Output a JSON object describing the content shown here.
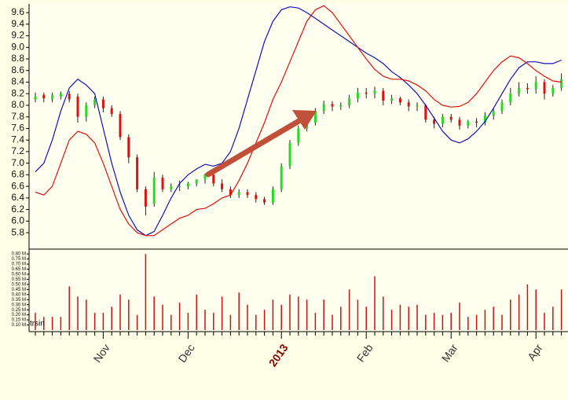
{
  "chart_data": {
    "type": "ohlc",
    "watermark": "trsin",
    "categories": [
      null,
      null,
      null,
      null,
      null,
      null,
      null,
      null,
      "Nov",
      null,
      null,
      null,
      null,
      null,
      null,
      null,
      null,
      null,
      "Dec",
      null,
      null,
      null,
      null,
      null,
      null,
      null,
      null,
      null,
      null,
      "2013",
      null,
      null,
      null,
      null,
      null,
      null,
      null,
      null,
      null,
      "Feb",
      null,
      null,
      null,
      null,
      null,
      null,
      null,
      null,
      null,
      "Mar",
      null,
      null,
      null,
      null,
      null,
      null,
      null,
      null,
      null,
      "Apr",
      null,
      null,
      null
    ],
    "open": [
      8.1,
      8.18,
      8.1,
      8.15,
      8.2,
      8.15,
      7.8,
      8.0,
      8.1,
      7.95,
      7.85,
      7.45,
      7.1,
      6.55,
      6.3,
      6.75,
      6.55,
      6.6,
      6.6,
      6.65,
      6.72,
      6.8,
      6.65,
      6.55,
      6.45,
      6.5,
      6.45,
      6.38,
      6.32,
      6.55,
      6.95,
      7.35,
      7.6,
      7.7,
      7.9,
      8.02,
      7.98,
      8.0,
      8.12,
      8.22,
      8.2,
      8.25,
      8.08,
      8.12,
      8.05,
      7.98,
      8.0,
      7.75,
      7.68,
      7.8,
      7.75,
      7.65,
      7.72,
      7.7,
      7.82,
      7.9,
      8.05,
      8.2,
      8.3,
      8.28,
      8.4,
      8.2,
      8.3
    ],
    "high": [
      8.22,
      8.22,
      8.22,
      8.24,
      8.25,
      8.2,
      8.05,
      8.15,
      8.15,
      8.0,
      7.9,
      7.5,
      7.15,
      6.6,
      6.85,
      6.8,
      6.65,
      6.7,
      6.68,
      6.72,
      6.82,
      6.85,
      6.72,
      6.6,
      6.55,
      6.55,
      6.5,
      6.42,
      6.6,
      7.0,
      7.4,
      7.65,
      7.78,
      7.95,
      8.08,
      8.07,
      8.05,
      8.18,
      8.3,
      8.3,
      8.32,
      8.3,
      8.18,
      8.15,
      8.1,
      8.05,
      8.02,
      7.8,
      7.85,
      7.85,
      7.8,
      7.75,
      7.78,
      7.88,
      7.95,
      8.1,
      8.3,
      8.4,
      8.38,
      8.5,
      8.45,
      8.35,
      8.55
    ],
    "low": [
      8.05,
      8.05,
      8.05,
      8.1,
      8.05,
      7.7,
      7.72,
      7.95,
      7.88,
      7.8,
      7.4,
      7.0,
      6.5,
      6.1,
      6.25,
      6.5,
      6.5,
      6.52,
      6.55,
      6.6,
      6.65,
      6.6,
      6.5,
      6.4,
      6.4,
      6.4,
      6.32,
      6.28,
      6.28,
      6.5,
      6.9,
      7.3,
      7.55,
      7.65,
      7.85,
      7.9,
      7.92,
      7.95,
      8.05,
      8.12,
      8.12,
      8.0,
      8.02,
      8.0,
      7.9,
      7.9,
      7.7,
      7.6,
      7.62,
      7.7,
      7.58,
      7.6,
      7.62,
      7.65,
      7.75,
      7.85,
      8.0,
      8.15,
      8.2,
      8.2,
      8.1,
      8.15,
      8.25
    ],
    "close": [
      8.15,
      8.12,
      8.18,
      8.2,
      8.1,
      7.8,
      8.0,
      8.1,
      7.95,
      7.85,
      7.45,
      7.1,
      6.55,
      6.25,
      6.75,
      6.55,
      6.6,
      6.6,
      6.65,
      6.72,
      6.8,
      6.65,
      6.55,
      6.45,
      6.5,
      6.45,
      6.38,
      6.32,
      6.55,
      6.95,
      7.35,
      7.6,
      7.7,
      7.9,
      8.02,
      7.98,
      8.0,
      8.12,
      8.22,
      8.2,
      8.25,
      8.08,
      8.12,
      8.05,
      7.98,
      8.0,
      7.75,
      7.68,
      7.8,
      7.75,
      7.65,
      7.72,
      7.7,
      7.82,
      7.9,
      8.05,
      8.2,
      8.3,
      8.28,
      8.4,
      8.2,
      8.3,
      8.45
    ],
    "up_color": "#22dd22",
    "down_color": "#dd1111",
    "lines": [
      {
        "color": "#1010c0",
        "values": [
          6.85,
          7.0,
          7.4,
          7.9,
          8.3,
          8.45,
          8.35,
          8.2,
          7.6,
          7.0,
          6.5,
          6.1,
          5.85,
          5.75,
          5.82,
          6.1,
          6.4,
          6.65,
          6.8,
          6.9,
          6.98,
          6.95,
          7.0,
          7.2,
          7.6,
          8.1,
          8.6,
          9.1,
          9.45,
          9.65,
          9.7,
          9.68,
          9.6,
          9.5,
          9.4,
          9.3,
          9.2,
          9.1,
          9.0,
          8.9,
          8.82,
          8.72,
          8.58,
          8.48,
          8.35,
          8.2,
          8.0,
          7.78,
          7.55,
          7.4,
          7.35,
          7.42,
          7.55,
          7.72,
          7.95,
          8.2,
          8.45,
          8.65,
          8.75,
          8.75,
          8.72,
          8.72,
          8.78
        ]
      },
      {
        "color": "#e01010",
        "values": [
          6.5,
          6.45,
          6.6,
          7.0,
          7.4,
          7.55,
          7.5,
          7.35,
          7.0,
          6.6,
          6.2,
          5.95,
          5.8,
          5.75,
          5.75,
          5.85,
          5.95,
          6.05,
          6.1,
          6.2,
          6.22,
          6.3,
          6.4,
          6.45,
          6.7,
          7.0,
          7.35,
          7.7,
          8.1,
          8.4,
          8.75,
          9.1,
          9.45,
          9.65,
          9.72,
          9.6,
          9.4,
          9.2,
          9.0,
          8.8,
          8.62,
          8.5,
          8.45,
          8.45,
          8.42,
          8.35,
          8.25,
          8.1,
          8.0,
          7.97,
          7.98,
          8.05,
          8.2,
          8.4,
          8.6,
          8.75,
          8.85,
          8.82,
          8.72,
          8.6,
          8.5,
          8.42,
          8.4
        ]
      }
    ],
    "ylim": [
      5.53,
      9.75
    ],
    "yticks": [
      5.8,
      {
        "value": 6,
        "label": "6.0"
      },
      6.2,
      6.4,
      6.6,
      6.8,
      {
        "value": 7,
        "label": "7.0"
      },
      7.2,
      7.4,
      7.6,
      7.8,
      {
        "value": 8,
        "label": "8.0"
      },
      8.2,
      8.4,
      8.6,
      8.8,
      {
        "value": 9,
        "label": "9.0"
      },
      9.2,
      9.4,
      9.6
    ],
    "volume": {
      "color": "#cc1111",
      "values": [
        0.22,
        0.18,
        0.18,
        0.18,
        0.48,
        0.38,
        0.35,
        0.22,
        0.22,
        0.28,
        0.4,
        0.35,
        0.2,
        0.8,
        0.38,
        0.3,
        0.2,
        0.32,
        0.22,
        0.4,
        0.25,
        0.22,
        0.38,
        0.2,
        0.42,
        0.3,
        0.2,
        0.25,
        0.35,
        0.3,
        0.4,
        0.38,
        0.35,
        0.22,
        0.35,
        0.2,
        0.28,
        0.45,
        0.35,
        0.28,
        0.58,
        0.38,
        0.25,
        0.3,
        0.28,
        0.3,
        0.2,
        0.22,
        0.2,
        0.22,
        0.32,
        0.18,
        0.2,
        0.25,
        0.28,
        0.2,
        0.35,
        0.4,
        0.5,
        0.45,
        0.22,
        0.28,
        0.45
      ],
      "ylim": [
        0.05,
        0.84
      ],
      "yticks": [
        {
          "value": 0.1,
          "label": "0.10 M"
        },
        {
          "value": 0.15,
          "label": "0.15 M"
        },
        {
          "value": 0.2,
          "label": "0.20 M"
        },
        {
          "value": 0.25,
          "label": "0.25 M"
        },
        {
          "value": 0.3,
          "label": "0.30 M"
        },
        {
          "value": 0.35,
          "label": "0.35 M"
        },
        {
          "value": 0.4,
          "label": "0.40 M"
        },
        {
          "value": 0.45,
          "label": "0.45 M"
        },
        {
          "value": 0.5,
          "label": "0.50 M"
        },
        {
          "value": 0.55,
          "label": "0.55 M"
        },
        {
          "value": 0.6,
          "label": "0.60 M"
        },
        {
          "value": 0.65,
          "label": "0.65 M"
        },
        {
          "value": 0.7,
          "label": "0.70 M"
        },
        {
          "value": 0.75,
          "label": "0.75 M"
        },
        {
          "value": 0.8,
          "label": "0.80 M"
        }
      ]
    }
  }
}
